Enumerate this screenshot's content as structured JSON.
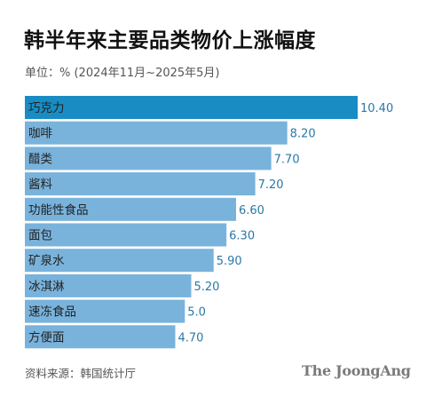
{
  "header": {
    "title": "韩半年来主要品类物价上涨幅度",
    "subtitle": "单位：% (2024年11月~2025年5月)"
  },
  "footer": {
    "source": "资料来源：韩国统计厅",
    "logo_text": "The JoongAng"
  },
  "colors": {
    "highlight_bar": "#1a8cc4",
    "bar": "#79b3dc",
    "value_label": "#2b78a8",
    "category_label": "#222222"
  },
  "chart_data": {
    "type": "bar",
    "orientation": "horizontal",
    "categories": [
      "巧克力",
      "咖啡",
      "醋类",
      "酱料",
      "功能性食品",
      "面包",
      "矿泉水",
      "冰淇淋",
      "速冻食品",
      "方便面"
    ],
    "values": [
      10.4,
      8.2,
      7.7,
      7.2,
      6.6,
      6.3,
      5.9,
      5.2,
      5.0,
      4.7
    ],
    "value_labels": [
      "10.40",
      "8.20",
      "7.70",
      "7.20",
      "6.60",
      "6.30",
      "5.90",
      "5.20",
      "5.0",
      "4.70"
    ],
    "highlight_index": 0,
    "unit": "%",
    "xlim": [
      0,
      10.4
    ],
    "grid": false,
    "legend": "none"
  }
}
